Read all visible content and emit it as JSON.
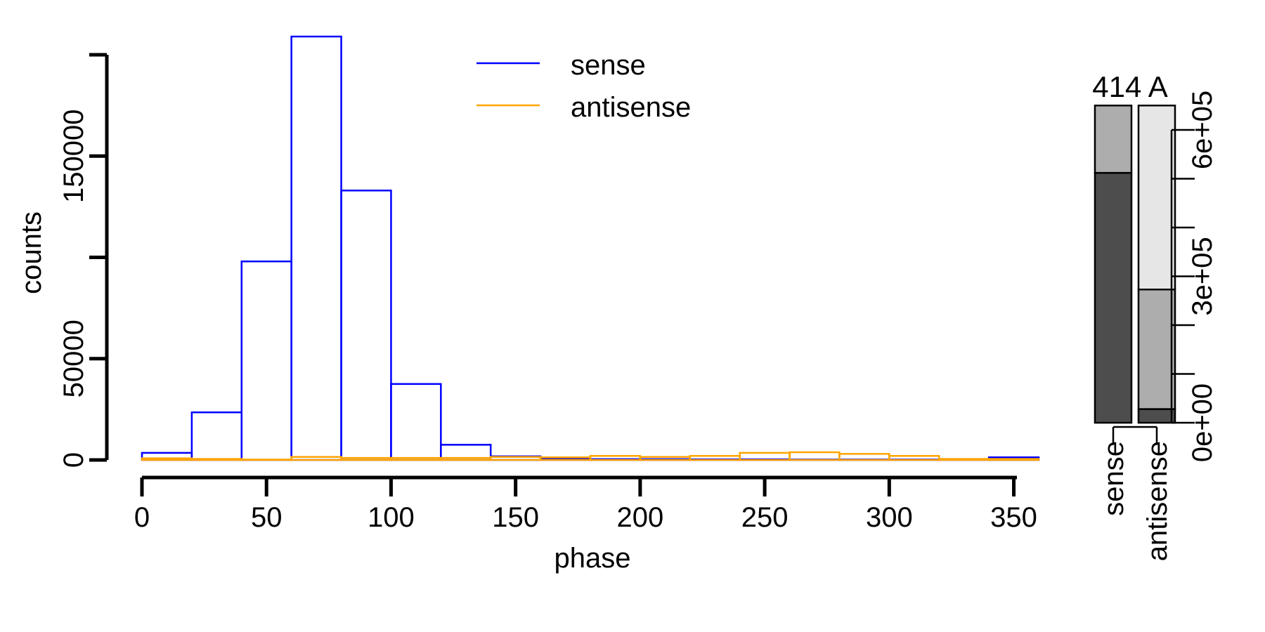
{
  "chart_data": [
    {
      "type": "histogram",
      "xlabel": "phase",
      "ylabel": "counts",
      "xlim": [
        0,
        360
      ],
      "ylim": [
        0,
        200000
      ],
      "x_ticks": [
        0,
        50,
        100,
        150,
        200,
        250,
        300,
        350
      ],
      "y_ticks": [
        0,
        50000,
        100000,
        150000,
        200000
      ],
      "y_tick_labels": [
        "0",
        "50000",
        "",
        "150000",
        ""
      ],
      "bin_edges": [
        0,
        20,
        40,
        60,
        80,
        100,
        120,
        140,
        160,
        180,
        200,
        220,
        240,
        260,
        280,
        300,
        320,
        340,
        360
      ],
      "series": [
        {
          "name": "sense",
          "color": "#0000ff",
          "values": [
            3500,
            23500,
            98000,
            209000,
            133000,
            37500,
            7500,
            1800,
            800,
            400,
            400,
            300,
            300,
            200,
            200,
            200,
            200,
            1300
          ]
        },
        {
          "name": "antisense",
          "color": "#ffa500",
          "values": [
            800,
            500,
            200,
            1500,
            1000,
            1000,
            1000,
            1500,
            1300,
            2000,
            1500,
            2000,
            3500,
            3800,
            3000,
            2000,
            500,
            500
          ]
        }
      ],
      "legend": {
        "position": "top-center",
        "entries": [
          "sense",
          "antisense"
        ]
      }
    },
    {
      "type": "stacked-bar",
      "title": "414 A",
      "categories": [
        "sense",
        "antisense"
      ],
      "ylim": [
        0,
        600000
      ],
      "y_ticks": [
        0,
        100000,
        200000,
        300000,
        400000,
        500000,
        600000
      ],
      "y_tick_labels": [
        "0e+00",
        "",
        "",
        "3e+05",
        "",
        "",
        "6e+05"
      ],
      "bars": [
        {
          "category": "sense",
          "segments": [
            {
              "value": 512000,
              "color": "#4d4d4d"
            },
            {
              "value": 138000,
              "color": "#adadad"
            }
          ]
        },
        {
          "category": "antisense",
          "segments": [
            {
              "value": 28000,
              "color": "#4d4d4d"
            },
            {
              "value": 245000,
              "color": "#adadad"
            },
            {
              "value": 377000,
              "color": "#e6e6e6"
            }
          ]
        }
      ]
    }
  ]
}
